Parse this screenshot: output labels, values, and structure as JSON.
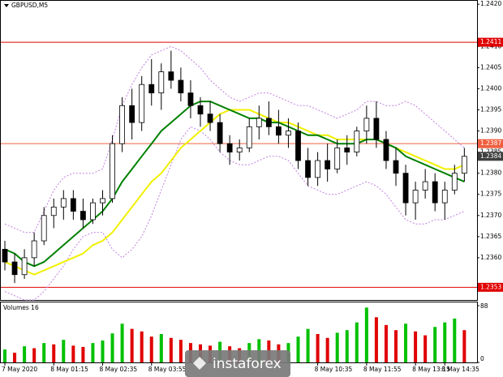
{
  "chart_data": {
    "type": "candlestick",
    "title": "GBPUSD,M5",
    "categories": [
      "7 May 2020",
      null,
      null,
      null,
      null,
      "8 May 01:15",
      null,
      null,
      null,
      null,
      "8 May 02:35",
      null,
      null,
      null,
      null,
      "8 May 03:55",
      null,
      null,
      null,
      null,
      null,
      null,
      null,
      null,
      null,
      null,
      null,
      null,
      null,
      null,
      null,
      null,
      "8 May 10:35",
      null,
      null,
      null,
      null,
      "8 May 11:55",
      null,
      null,
      null,
      null,
      "8 May 13:15",
      null,
      null,
      "8 May 14:35",
      null,
      null
    ],
    "open": [
      1.2362,
      1.2359,
      1.2356,
      1.236,
      1.2364,
      1.237,
      1.2372,
      1.2374,
      1.2371,
      1.2369,
      1.2373,
      1.2374,
      1.2387,
      1.2396,
      1.2392,
      1.2401,
      1.2399,
      1.2404,
      1.2402,
      1.2399,
      1.2396,
      1.2394,
      1.2392,
      1.2387,
      1.2385,
      1.2386,
      1.2391,
      1.2393,
      1.2391,
      1.2389,
      1.239,
      1.2383,
      1.2379,
      1.2383,
      1.2381,
      1.2386,
      1.2385,
      1.239,
      1.2393,
      1.2388,
      1.2383,
      1.238,
      1.2373,
      1.2376,
      1.2378,
      1.2373,
      1.2376,
      1.238
    ],
    "high": [
      1.2364,
      1.2361,
      1.2362,
      1.2366,
      1.2372,
      1.2374,
      1.2376,
      1.2376,
      1.2374,
      1.2374,
      1.2376,
      1.2389,
      1.2398,
      1.24,
      1.2403,
      1.2407,
      1.2406,
      1.2409,
      1.2405,
      1.2402,
      1.2398,
      1.2397,
      1.2394,
      1.2389,
      1.2388,
      1.2393,
      1.2396,
      1.2397,
      1.2395,
      1.2393,
      1.2392,
      1.2386,
      1.2385,
      1.2387,
      1.2388,
      1.2389,
      1.2391,
      1.2396,
      1.2397,
      1.239,
      1.2386,
      1.2382,
      1.2378,
      1.2381,
      1.238,
      1.2378,
      1.2382,
      1.2386
    ],
    "low": [
      1.2357,
      1.2354,
      1.2355,
      1.2358,
      1.2363,
      1.2367,
      1.2369,
      1.2369,
      1.2367,
      1.2368,
      1.237,
      1.2373,
      1.2385,
      1.2388,
      1.239,
      1.2396,
      1.2395,
      1.24,
      1.2397,
      1.2393,
      1.2391,
      1.239,
      1.2385,
      1.2382,
      1.2383,
      1.2385,
      1.2388,
      1.2389,
      1.2387,
      1.2386,
      1.2381,
      1.2377,
      1.2377,
      1.2378,
      1.238,
      1.2382,
      1.2384,
      1.2387,
      1.2386,
      1.2381,
      1.2377,
      1.237,
      1.2369,
      1.2374,
      1.2371,
      1.2369,
      1.2375,
      1.2378
    ],
    "close": [
      1.2359,
      1.2356,
      1.236,
      1.2364,
      1.237,
      1.2372,
      1.2374,
      1.2371,
      1.2369,
      1.2373,
      1.2374,
      1.2387,
      1.2396,
      1.2392,
      1.2401,
      1.2399,
      1.2404,
      1.2402,
      1.2399,
      1.2396,
      1.2394,
      1.2392,
      1.2387,
      1.2385,
      1.2386,
      1.2391,
      1.2393,
      1.2391,
      1.2389,
      1.239,
      1.2383,
      1.2379,
      1.2383,
      1.2381,
      1.2386,
      1.2385,
      1.239,
      1.2393,
      1.2388,
      1.2383,
      1.238,
      1.2373,
      1.2376,
      1.2378,
      1.2373,
      1.2376,
      1.238,
      1.2384
    ],
    "up_color": "#ffffff",
    "down_color": "#000000",
    "lines": [
      {
        "color": "#c080e0",
        "dashed": true,
        "values": [
          1.2368,
          1.2367,
          1.2366,
          1.2366,
          1.2371,
          1.2376,
          1.2379,
          1.238,
          1.238,
          1.238,
          1.2381,
          1.2388,
          1.2396,
          1.2401,
          1.2405,
          1.2408,
          1.2409,
          1.241,
          1.2409,
          1.2407,
          1.2405,
          1.2402,
          1.24,
          1.2398,
          1.2397,
          1.2398,
          1.2399,
          1.2399,
          1.2398,
          1.2397,
          1.2396,
          1.2396,
          1.2395,
          1.2394,
          1.2393,
          1.2394,
          1.2395,
          1.2397,
          1.2397,
          1.2396,
          1.2396,
          1.2397,
          1.2396,
          1.2394,
          1.2392,
          1.239,
          1.2388,
          1.2386
        ]
      },
      {
        "color": "#c080e0",
        "dashed": true,
        "values": [
          1.2352,
          1.2351,
          1.235,
          1.235,
          1.2352,
          1.2355,
          1.2358,
          1.2362,
          1.2365,
          1.2366,
          1.2366,
          1.2362,
          1.236,
          1.2362,
          1.2365,
          1.237,
          1.2376,
          1.2382,
          1.2388,
          1.2391,
          1.239,
          1.2388,
          1.2385,
          1.2383,
          1.2382,
          1.2382,
          1.2383,
          1.2384,
          1.2384,
          1.2383,
          1.238,
          1.2377,
          1.2376,
          1.2375,
          1.2375,
          1.2376,
          1.2377,
          1.2378,
          1.2377,
          1.2375,
          1.2372,
          1.2369,
          1.2368,
          1.2368,
          1.2369,
          1.2369,
          1.237,
          1.2371
        ]
      },
      {
        "color": "#f0f000",
        "dashed": false,
        "values": [
          1.2359,
          1.2358,
          1.2357,
          1.2356,
          1.2357,
          1.2358,
          1.2359,
          1.236,
          1.2361,
          1.2363,
          1.2364,
          1.2366,
          1.2369,
          1.2372,
          1.2375,
          1.2378,
          1.238,
          1.2383,
          1.2386,
          1.2388,
          1.239,
          1.2392,
          1.2394,
          1.2395,
          1.2395,
          1.2395,
          1.2394,
          1.2393,
          1.2392,
          1.2392,
          1.2391,
          1.239,
          1.2389,
          1.2389,
          1.2388,
          1.2388,
          1.2388,
          1.2388,
          1.2388,
          1.2387,
          1.2386,
          1.2385,
          1.2384,
          1.2383,
          1.2382,
          1.2381,
          1.2381,
          1.2382
        ]
      },
      {
        "color": "#008000",
        "dashed": false,
        "values": [
          1.2362,
          1.2361,
          1.2359,
          1.2358,
          1.2359,
          1.2361,
          1.2363,
          1.2365,
          1.2367,
          1.2369,
          1.2371,
          1.2374,
          1.2378,
          1.2381,
          1.2384,
          1.2387,
          1.239,
          1.2392,
          1.2394,
          1.2396,
          1.2397,
          1.2397,
          1.2396,
          1.2395,
          1.2394,
          1.2393,
          1.2393,
          1.2392,
          1.2392,
          1.2391,
          1.239,
          1.2389,
          1.2389,
          1.2388,
          1.2387,
          1.2387,
          1.2387,
          1.2388,
          1.2388,
          1.2387,
          1.2386,
          1.2384,
          1.2383,
          1.2382,
          1.2381,
          1.238,
          1.2379,
          1.2378
        ]
      }
    ],
    "levels": [
      {
        "value": 1.2411,
        "label": "1.2411",
        "color": "#e00000"
      },
      {
        "value": 1.2387,
        "label": "1.2387",
        "color": "#f06040"
      },
      {
        "value": 1.2353,
        "label": "1.2353",
        "color": "#e00000"
      }
    ],
    "current_price": {
      "value": 1.2384,
      "label": "1.2384",
      "color": "#404040"
    },
    "ylim": [
      1.235,
      1.2421
    ],
    "yticks": [
      {
        "value": 1.242,
        "label": "1.2420"
      },
      {
        "value": 1.241,
        "label": "1.2410"
      },
      {
        "value": 1.2405,
        "label": "1.2405"
      },
      {
        "value": 1.24,
        "label": "1.2400"
      },
      {
        "value": 1.2395,
        "label": "1.2395"
      },
      {
        "value": 1.239,
        "label": "1.2390"
      },
      {
        "value": 1.2385,
        "label": "1.2385"
      },
      {
        "value": 1.238,
        "label": "1.2380"
      },
      {
        "value": 1.2375,
        "label": "1.2375"
      },
      {
        "value": 1.237,
        "label": "1.2370"
      },
      {
        "value": 1.2365,
        "label": "1.2365"
      },
      {
        "value": 1.236,
        "label": "1.2360"
      }
    ],
    "volume": {
      "label": "Volumes 16",
      "up_color": "#00c000",
      "down_color": "#e00000",
      "values": [
        20,
        15,
        25,
        22,
        30,
        28,
        35,
        26,
        24,
        30,
        34,
        45,
        60,
        52,
        48,
        40,
        44,
        38,
        35,
        30,
        28,
        26,
        32,
        25,
        22,
        30,
        36,
        34,
        28,
        30,
        40,
        52,
        44,
        38,
        46,
        50,
        62,
        85,
        70,
        58,
        50,
        60,
        48,
        42,
        55,
        62,
        68,
        50
      ],
      "ylim": [
        0,
        88
      ],
      "yticks": [
        0,
        88
      ]
    },
    "watermark": "instaforex"
  }
}
